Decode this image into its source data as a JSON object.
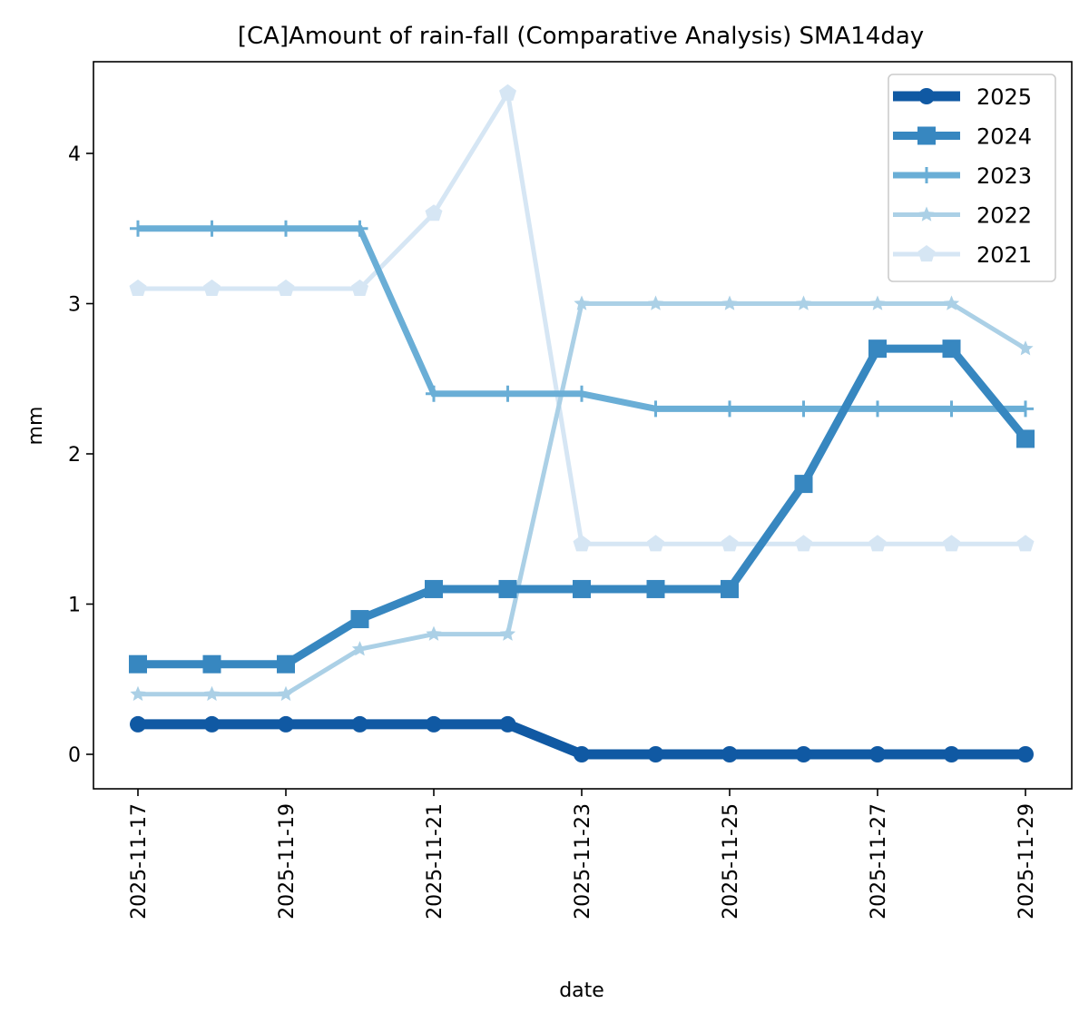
{
  "chart_data": {
    "type": "line",
    "title": "[CA]Amount of rain-fall (Comparative Analysis) SMA14day",
    "xlabel": "date",
    "ylabel": "mm",
    "x": [
      "2025-11-17",
      "2025-11-18",
      "2025-11-19",
      "2025-11-20",
      "2025-11-21",
      "2025-11-22",
      "2025-11-23",
      "2025-11-24",
      "2025-11-25",
      "2025-11-26",
      "2025-11-27",
      "2025-11-28",
      "2025-11-29"
    ],
    "xticks": [
      "2025-11-17",
      "2025-11-19",
      "2025-11-21",
      "2025-11-23",
      "2025-11-25",
      "2025-11-27",
      "2025-11-29"
    ],
    "yticks": [
      "0",
      "1",
      "2",
      "3",
      "4"
    ],
    "ylim": [
      -0.22,
      4.62
    ],
    "grid": false,
    "legend_position": "top-right",
    "series": [
      {
        "name": "2025",
        "color": "#1059a3",
        "marker": "circle",
        "values": [
          0.2,
          0.2,
          0.2,
          0.2,
          0.2,
          0.2,
          0.0,
          0.0,
          0.0,
          0.0,
          0.0,
          0.0,
          0.0
        ]
      },
      {
        "name": "2024",
        "color": "#3787c0",
        "marker": "square",
        "values": [
          0.6,
          0.6,
          0.6,
          0.9,
          1.1,
          1.1,
          1.1,
          1.1,
          1.1,
          1.8,
          2.7,
          2.7,
          2.1
        ]
      },
      {
        "name": "2023",
        "color": "#6aaed6",
        "marker": "plus",
        "values": [
          3.5,
          3.5,
          3.5,
          3.5,
          2.4,
          2.4,
          2.4,
          2.3,
          2.3,
          2.3,
          2.3,
          2.3,
          2.3
        ]
      },
      {
        "name": "2022",
        "color": "#abd0e6",
        "marker": "star",
        "values": [
          0.4,
          0.4,
          0.4,
          0.7,
          0.8,
          0.8,
          3.0,
          3.0,
          3.0,
          3.0,
          3.0,
          3.0,
          2.7
        ]
      },
      {
        "name": "2021",
        "color": "#d6e6f4",
        "marker": "pentagon",
        "values": [
          3.1,
          3.1,
          3.1,
          3.1,
          3.6,
          4.4,
          1.4,
          1.4,
          1.4,
          1.4,
          1.4,
          1.4,
          1.4
        ]
      }
    ]
  }
}
